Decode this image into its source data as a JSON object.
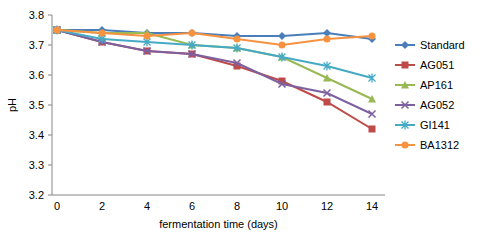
{
  "chart_data": {
    "type": "line",
    "x_label": "fermentation time (days)",
    "y_label": "pH",
    "categories": [
      "0",
      "2",
      "4",
      "6",
      "8",
      "10",
      "12",
      "14"
    ],
    "ylim": [
      3.2,
      3.8
    ],
    "yticks": [
      3.2,
      3.3,
      3.4,
      3.5,
      3.6,
      3.7,
      3.8
    ],
    "grid": false,
    "legend": "right",
    "series": [
      {
        "name": "Standard",
        "color": "#4a7ebb",
        "marker": "diamond",
        "values": [
          3.75,
          3.75,
          3.74,
          3.74,
          3.73,
          3.73,
          3.74,
          3.72
        ]
      },
      {
        "name": "AG051",
        "color": "#be4b48",
        "marker": "square",
        "values": [
          3.75,
          3.71,
          3.68,
          3.67,
          3.63,
          3.58,
          3.51,
          3.42
        ]
      },
      {
        "name": "AP161",
        "color": "#98b954",
        "marker": "triangle",
        "values": [
          3.75,
          3.74,
          3.74,
          3.7,
          3.69,
          3.66,
          3.59,
          3.52
        ]
      },
      {
        "name": "AG052",
        "color": "#7d60a0",
        "marker": "x",
        "values": [
          3.75,
          3.71,
          3.68,
          3.67,
          3.64,
          3.57,
          3.54,
          3.47
        ]
      },
      {
        "name": "GI141",
        "color": "#46aac5",
        "marker": "star",
        "values": [
          3.75,
          3.72,
          3.71,
          3.7,
          3.69,
          3.66,
          3.63,
          3.59
        ]
      },
      {
        "name": "BA1312",
        "color": "#f69240",
        "marker": "circle",
        "values": [
          3.75,
          3.74,
          3.73,
          3.74,
          3.72,
          3.7,
          3.72,
          3.73
        ]
      }
    ]
  }
}
